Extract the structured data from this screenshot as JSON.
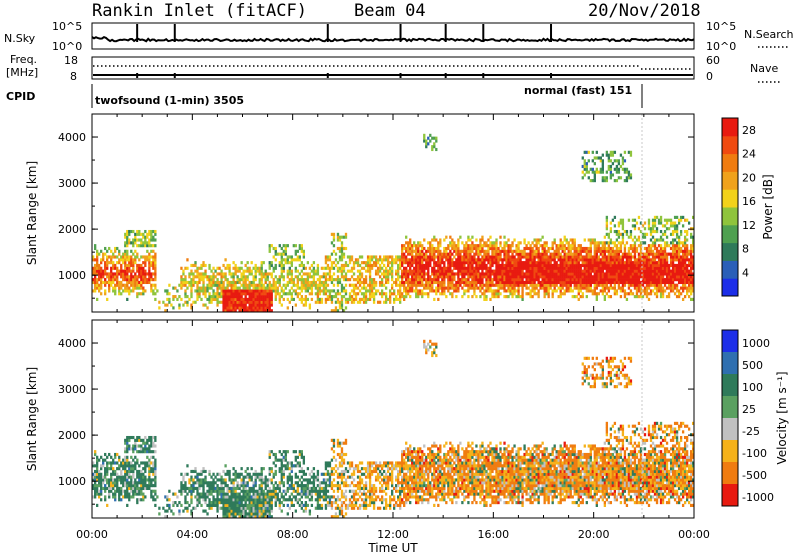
{
  "header": {
    "station": "Rankin Inlet (fitACF)",
    "beam": "Beam 04",
    "date": "20/Nov/2018"
  },
  "panels": {
    "nsky_label": "N.Sky",
    "nsky_ticks": [
      "10^5",
      "10^0"
    ],
    "nsearch_label": "N.Search",
    "freq_label_1": "Freq.",
    "freq_label_2": "[MHz]",
    "freq_ticks": [
      "18",
      "8"
    ],
    "nave_label": "Nave",
    "nave_ticks": [
      "60",
      "0"
    ],
    "cpid_label": "CPID",
    "cpid_mode_1": "twofsound (1-min) 3505",
    "cpid_mode_2": "normal (fast) 151"
  },
  "colorbars": {
    "power": {
      "label": "Power [dB]",
      "ticks": [
        "4",
        "8",
        "12",
        "16",
        "20",
        "24",
        "28"
      ],
      "colors": [
        "#1c2ee8",
        "#2a5fb8",
        "#2f7a5a",
        "#4fa050",
        "#8fc43c",
        "#f2d21a",
        "#f0a21c",
        "#f07c10",
        "#f04a10",
        "#e81a10"
      ]
    },
    "velocity": {
      "label": "Velocity [m s⁻¹]",
      "ticks": [
        "1000",
        "500",
        "100",
        "25",
        "-25",
        "-100",
        "-500",
        "-1000"
      ],
      "colors": [
        "#1c2ee8",
        "#2f6fb0",
        "#2f7a5a",
        "#5aa060",
        "#c0c0c0",
        "#f5b21a",
        "#f07c10",
        "#e81a10"
      ]
    }
  },
  "chart_data": [
    {
      "type": "heatmap",
      "title": "Power",
      "xlabel": "Time UT",
      "ylabel": "Slant Range [km]",
      "xticks": [
        "00:00",
        "04:00",
        "08:00",
        "12:00",
        "16:00",
        "20:00",
        "00:00"
      ],
      "yticks": [
        1000,
        2000,
        3000,
        4000
      ],
      "ylim": [
        200,
        4500
      ],
      "xlim_hours": [
        0,
        24
      ],
      "colorbar_range_db": [
        0,
        30
      ]
    },
    {
      "type": "heatmap",
      "title": "Velocity",
      "xlabel": "Time UT",
      "ylabel": "Slant Range [km]",
      "xticks": [
        "00:00",
        "04:00",
        "08:00",
        "12:00",
        "16:00",
        "20:00",
        "00:00"
      ],
      "yticks": [
        1000,
        2000,
        3000,
        4000
      ],
      "ylim": [
        200,
        4500
      ],
      "xlim_hours": [
        0,
        24
      ],
      "colorbar_range": [
        -1000,
        1000
      ]
    }
  ],
  "axis": {
    "xlabel": "Time UT",
    "ylabel": "Slant Range [km]",
    "xticks": [
      "00:00",
      "04:00",
      "08:00",
      "12:00",
      "16:00",
      "20:00",
      "00:00"
    ],
    "yticks": [
      "1000",
      "2000",
      "3000",
      "4000"
    ]
  }
}
